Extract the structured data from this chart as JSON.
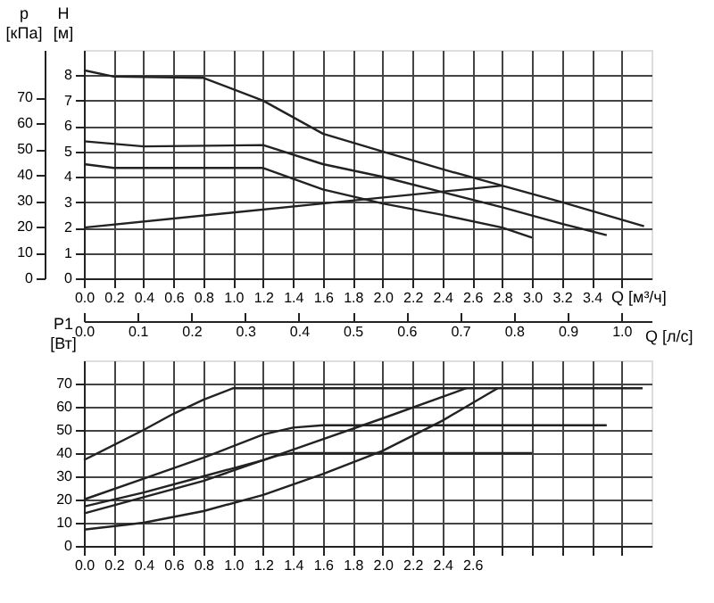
{
  "chart_data": [
    {
      "type": "line",
      "xlabel": "Q [м³/ч]",
      "ylabel": "H [м]",
      "y2label": "p [кПа]",
      "grid": true,
      "marker": "none",
      "line_style": "solid",
      "xlim": [
        0,
        3.8
      ],
      "ylim": [
        0,
        9
      ],
      "y2lim": [
        0,
        88.3
      ],
      "xticks": [
        {
          "value": 0,
          "label": "0.0"
        },
        {
          "value": 0.2,
          "label": "0.2"
        },
        {
          "value": 0.4,
          "label": "0.4"
        },
        {
          "value": 0.6,
          "label": "0.6"
        },
        {
          "value": 0.8,
          "label": "0.8"
        },
        {
          "value": 1,
          "label": "1.0"
        },
        {
          "value": 1.2,
          "label": "1.2"
        },
        {
          "value": 1.4,
          "label": "1.4"
        },
        {
          "value": 1.6,
          "label": "1.6"
        },
        {
          "value": 1.8,
          "label": "1.8"
        },
        {
          "value": 2,
          "label": "2.0"
        },
        {
          "value": 2.2,
          "label": "2.2"
        },
        {
          "value": 2.4,
          "label": "2.4"
        },
        {
          "value": 2.6,
          "label": "2.6"
        },
        {
          "value": 2.8,
          "label": "2.8"
        },
        {
          "value": 3,
          "label": "3.0"
        },
        {
          "value": 3.2,
          "label": "3.2"
        },
        {
          "value": 3.4,
          "label": "3.4"
        },
        {
          "value": 3.6,
          "label": null
        }
      ],
      "yticks": [
        0,
        1,
        2,
        3,
        4,
        5,
        6,
        7,
        8
      ],
      "y2ticks": [
        0,
        10,
        20,
        30,
        40,
        50,
        60,
        70
      ],
      "series": [
        {
          "color": "#222222",
          "x": [
            0,
            0.2,
            0.8,
            1.2,
            1.6,
            2.0,
            2.4,
            2.8,
            3.2,
            3.75
          ],
          "values": [
            8.2,
            7.95,
            7.9,
            7.0,
            5.7,
            5.0,
            4.3,
            3.65,
            3.0,
            2.05
          ]
        },
        {
          "color": "#222222",
          "x": [
            0,
            0.4,
            1.2,
            1.6,
            2.0,
            2.4,
            2.8,
            3.2,
            3.5
          ],
          "values": [
            5.4,
            5.2,
            5.25,
            4.5,
            4.0,
            3.4,
            2.8,
            2.15,
            1.7
          ]
        },
        {
          "color": "#222222",
          "x": [
            0,
            0.2,
            1.2,
            1.6,
            2.0,
            2.4,
            2.8,
            3.0
          ],
          "values": [
            4.5,
            4.35,
            4.35,
            3.5,
            2.95,
            2.5,
            2.0,
            1.6
          ]
        },
        {
          "color": "#222222",
          "x": [
            0,
            1.6,
            2.8
          ],
          "values": [
            2.0,
            2.95,
            3.65
          ]
        }
      ]
    },
    {
      "type": "line",
      "ylabel": "P1 [Вт]",
      "x2label": "Q [л/с]",
      "grid": true,
      "marker": "none",
      "line_style": "solid",
      "xlim": [
        0,
        3.8
      ],
      "ylim": [
        0,
        80
      ],
      "x2lim": [
        0,
        1.056
      ],
      "xticks": [
        {
          "value": 0,
          "label": "0.0"
        },
        {
          "value": 0.2,
          "label": "0.2"
        },
        {
          "value": 0.4,
          "label": "0.4"
        },
        {
          "value": 0.6,
          "label": "0.6"
        },
        {
          "value": 0.8,
          "label": "0.8"
        },
        {
          "value": 1,
          "label": "1.0"
        },
        {
          "value": 1.2,
          "label": "1.2"
        },
        {
          "value": 1.4,
          "label": "1.4"
        },
        {
          "value": 1.6,
          "label": "1.6"
        },
        {
          "value": 1.8,
          "label": "1.8"
        },
        {
          "value": 2,
          "label": "2.0"
        },
        {
          "value": 2.2,
          "label": "2.2"
        },
        {
          "value": 2.4,
          "label": "2.4"
        },
        {
          "value": 2.6,
          "label": "2.6"
        },
        {
          "value": 2.8,
          "label": null
        },
        {
          "value": 3,
          "label": null
        },
        {
          "value": 3.2,
          "label": null
        },
        {
          "value": 3.4,
          "label": null
        },
        {
          "value": 3.6,
          "label": null
        }
      ],
      "x2ticks": [
        {
          "value": 0,
          "label": "0.0"
        },
        0.1,
        0.2,
        0.3,
        0.4,
        0.5,
        0.6,
        0.7,
        0.8,
        0.9,
        {
          "value": 1,
          "label": "1.0"
        }
      ],
      "yticks": [
        0,
        10,
        20,
        30,
        40,
        50,
        60,
        70
      ],
      "series": [
        {
          "color": "#222222",
          "x": [
            0,
            0.4,
            0.6,
            0.8,
            1.0,
            3.74
          ],
          "values": [
            37,
            50,
            57,
            63,
            68,
            68
          ]
        },
        {
          "color": "#222222",
          "x": [
            0,
            0.4,
            0.8,
            1.2,
            1.4,
            1.6,
            3.5
          ],
          "values": [
            20,
            29,
            38,
            48,
            51,
            52,
            52
          ]
        },
        {
          "color": "#222222",
          "x": [
            0,
            0.4,
            0.8,
            1.2,
            1.3,
            1.4,
            3.0
          ],
          "values": [
            17,
            23,
            30,
            37,
            39,
            40,
            40
          ]
        },
        {
          "color": "#222222",
          "x": [
            0,
            0.4,
            0.8,
            1.2,
            1.6,
            2.0,
            2.56
          ],
          "values": [
            14,
            21,
            28,
            37,
            46,
            55,
            68
          ]
        },
        {
          "color": "#222222",
          "x": [
            0,
            0.4,
            0.8,
            1.2,
            1.6,
            2.0,
            2.4,
            2.77
          ],
          "values": [
            7,
            10,
            15,
            22,
            31,
            41,
            54,
            68
          ]
        }
      ]
    }
  ]
}
